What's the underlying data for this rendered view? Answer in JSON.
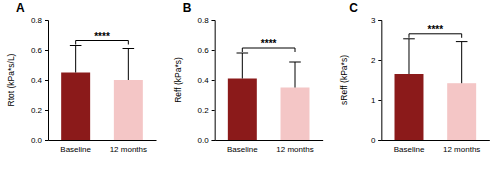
{
  "chart_data": [
    {
      "type": "bar",
      "title": "A",
      "ylabel": "Rtot (kPa*s/L)",
      "categories": [
        "Baseline",
        "12 months"
      ],
      "values": [
        0.45,
        0.4
      ],
      "errors": [
        0.18,
        0.21
      ],
      "colors": [
        "#8b1a1a",
        "#f4c6c6"
      ],
      "ylim": [
        0,
        0.8
      ],
      "yticks": [
        {
          "value": 0,
          "label": "0.0"
        },
        0.2,
        0.4,
        0.6,
        0.8
      ],
      "annotation": "****"
    },
    {
      "type": "bar",
      "title": "B",
      "ylabel": "Reff (kPa*s)",
      "categories": [
        "Baseline",
        "12 months"
      ],
      "values": [
        0.41,
        0.35
      ],
      "errors": [
        0.17,
        0.17
      ],
      "colors": [
        "#8b1a1a",
        "#f4c6c6"
      ],
      "ylim": [
        0,
        0.8
      ],
      "yticks": [
        {
          "value": 0,
          "label": "0.0"
        },
        0.2,
        0.4,
        0.6,
        0.8
      ],
      "annotation": "****"
    },
    {
      "type": "bar",
      "title": "C",
      "ylabel": "sReff (kPa*s)",
      "categories": [
        "Baseline",
        "12 months"
      ],
      "values": [
        1.65,
        1.42
      ],
      "errors": [
        0.88,
        1.04
      ],
      "colors": [
        "#8b1a1a",
        "#f4c6c6"
      ],
      "ylim": [
        0,
        3
      ],
      "yticks": [
        0,
        1,
        2,
        3
      ],
      "annotation": "****"
    }
  ]
}
